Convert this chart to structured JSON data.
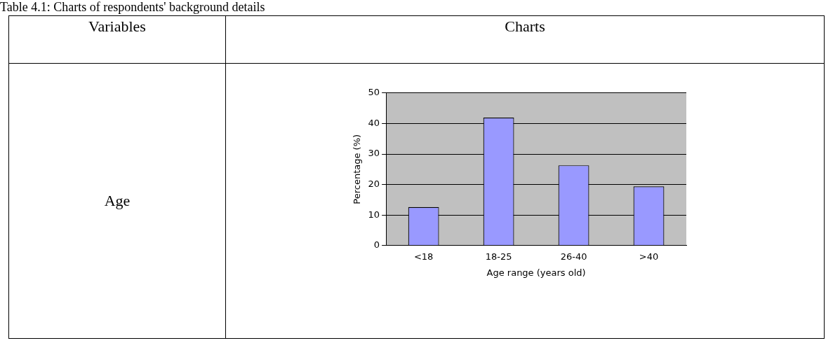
{
  "chart_data": {
    "type": "bar",
    "title": "Table 4.1: Charts of respondents' background details",
    "annotations": [
      "Variables",
      "Charts",
      "Age"
    ],
    "xlabel": "Age range (years old)",
    "ylabel": "Percentage (%)",
    "categories": [
      "<18",
      "18-25",
      "26-40",
      ">40"
    ],
    "values": [
      12.6,
      41.9,
      26.3,
      19.4
    ],
    "color": "#9999ff",
    "ylim": [
      0,
      50
    ],
    "yticks": [
      0,
      10,
      20,
      30,
      40,
      50
    ],
    "grid": "y",
    "legend": false
  }
}
